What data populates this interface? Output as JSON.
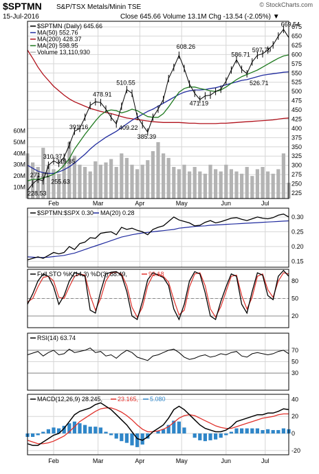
{
  "header": {
    "symbol": "$SPTMN",
    "name": "S&P/TSX Metals/Minin TSE",
    "date": "15-Jul-2016",
    "quote": "Close 645.66  Volume 13.1M  Chg -13.54 (-2.05%) ▼",
    "watermark": "© StockCharts.com"
  },
  "colors": {
    "price": "#000000",
    "ma50": "#1f2a9e",
    "ma200": "#b0101a",
    "ma20": "#1f7a1f",
    "volume": "#b3b3b3",
    "macd": "#000000",
    "signal": "#e0302a",
    "histogram": "#2f86c8",
    "grid": "#d6d6d6",
    "frame": "#000000",
    "hline": "#888888"
  },
  "x_axis": {
    "months": [
      "Feb",
      "Mar",
      "Apr",
      "May",
      "Jun",
      "Jul"
    ],
    "month_positions": [
      0.1,
      0.27,
      0.43,
      0.59,
      0.76,
      0.91
    ]
  },
  "chart_data": [
    {
      "type": "line",
      "name": "price",
      "legend": [
        {
          "key": "price",
          "text": "$SPTMN (Daily) 645.66"
        },
        {
          "key": "ma50",
          "text": "MA(50) 552.76"
        },
        {
          "key": "ma200",
          "text": "MA(200) 428.37"
        },
        {
          "key": "ma20",
          "text": "MA(20) 598.95"
        },
        {
          "key": "volume",
          "text": "Volume 13,110,930"
        }
      ],
      "ylim": [
        210,
        690
      ],
      "y_ticks": [
        675,
        650,
        625,
        600,
        575,
        550,
        525,
        500,
        475,
        450,
        425,
        400,
        375,
        350,
        325,
        300,
        275,
        250,
        225
      ],
      "volume_ticks": [
        "60M",
        "50M",
        "40M",
        "30M",
        "20M",
        "10M"
      ],
      "volume_tick_values": [
        60,
        50,
        40,
        30,
        20,
        10
      ],
      "volume_max": 66,
      "price_x": [
        0,
        0.02,
        0.04,
        0.06,
        0.08,
        0.1,
        0.12,
        0.14,
        0.16,
        0.18,
        0.2,
        0.22,
        0.24,
        0.26,
        0.28,
        0.3,
        0.32,
        0.34,
        0.36,
        0.38,
        0.4,
        0.42,
        0.44,
        0.46,
        0.48,
        0.5,
        0.52,
        0.54,
        0.56,
        0.58,
        0.6,
        0.62,
        0.64,
        0.66,
        0.68,
        0.7,
        0.72,
        0.74,
        0.76,
        0.78,
        0.8,
        0.82,
        0.84,
        0.86,
        0.88,
        0.9,
        0.92,
        0.94,
        0.96,
        0.98,
        1.0
      ],
      "price": [
        232,
        250,
        262,
        258,
        300,
        312,
        305,
        322,
        355,
        392,
        400,
        430,
        462,
        472,
        470,
        452,
        430,
        412,
        460,
        505,
        495,
        432,
        410,
        390,
        430,
        452,
        478,
        535,
        565,
        598,
        562,
        520,
        495,
        478,
        488,
        490,
        500,
        506,
        528,
        558,
        586,
        560,
        548,
        580,
        598,
        602,
        612,
        626,
        650,
        668,
        646
      ],
      "ma50": [
        300,
        292,
        284,
        280,
        278,
        278,
        282,
        288,
        296,
        306,
        318,
        330,
        344,
        356,
        366,
        376,
        384,
        392,
        402,
        412,
        422,
        430,
        438,
        446,
        452,
        460,
        468,
        476,
        484,
        492,
        498,
        502,
        504,
        504,
        505,
        508,
        510,
        514,
        518,
        522,
        526,
        530,
        532,
        536,
        540,
        544,
        546,
        548,
        550,
        552,
        553
      ],
      "ma200": [
        612,
        590,
        566,
        546,
        530,
        514,
        502,
        490,
        480,
        472,
        466,
        460,
        454,
        450,
        446,
        443,
        440,
        436,
        432,
        428,
        426,
        424,
        422,
        420,
        418,
        417,
        416,
        416,
        416,
        416,
        415,
        414,
        414,
        413,
        413,
        413,
        413,
        414,
        414,
        415,
        416,
        417,
        418,
        419,
        420,
        421,
        422,
        423,
        425,
        427,
        428
      ],
      "ma20": [
        258,
        262,
        262,
        266,
        270,
        276,
        286,
        300,
        318,
        344,
        364,
        384,
        402,
        420,
        436,
        446,
        450,
        448,
        442,
        446,
        452,
        448,
        440,
        432,
        430,
        430,
        440,
        458,
        478,
        498,
        508,
        512,
        512,
        508,
        505,
        502,
        500,
        504,
        512,
        522,
        532,
        540,
        546,
        552,
        558,
        566,
        574,
        582,
        590,
        596,
        599
      ],
      "volume": [
        40,
        32,
        28,
        45,
        30,
        26,
        22,
        36,
        50,
        38,
        30,
        28,
        24,
        33,
        30,
        32,
        35,
        28,
        40,
        36,
        30,
        26,
        30,
        34,
        42,
        50,
        40,
        36,
        28,
        26,
        30,
        24,
        28,
        24,
        22,
        30,
        26,
        24,
        30,
        26,
        24,
        22,
        28,
        20,
        26,
        28,
        24,
        22,
        26,
        40,
        14
      ],
      "annotations": [
        {
          "label": "271.01",
          "x": 0.01,
          "y": 268
        },
        {
          "label": "228.53",
          "x": 0.0,
          "y": 218
        },
        {
          "label": "255.63",
          "x": 0.09,
          "y": 250
        },
        {
          "label": "310.37",
          "x": 0.06,
          "y": 318
        },
        {
          "label": "319.85",
          "x": 0.11,
          "y": 305
        },
        {
          "label": "391.16",
          "x": 0.16,
          "y": 398
        },
        {
          "label": "478.91",
          "x": 0.25,
          "y": 486
        },
        {
          "label": "510.55",
          "x": 0.34,
          "y": 518
        },
        {
          "label": "409.22",
          "x": 0.35,
          "y": 396
        },
        {
          "label": "385.39",
          "x": 0.42,
          "y": 372
        },
        {
          "label": "608.26",
          "x": 0.57,
          "y": 616
        },
        {
          "label": "471.19",
          "x": 0.62,
          "y": 462
        },
        {
          "label": "586.71",
          "x": 0.78,
          "y": 594
        },
        {
          "label": "597.79",
          "x": 0.86,
          "y": 606
        },
        {
          "label": "526.71",
          "x": 0.85,
          "y": 517
        },
        {
          "label": "669.54",
          "x": 0.97,
          "y": 676
        }
      ]
    },
    {
      "type": "line",
      "name": "ratio",
      "legend": [
        {
          "key": "price",
          "text": "$SPTMN:$SPX 0.30"
        },
        {
          "key": "ma50",
          "text": "MA(20) 0.28"
        }
      ],
      "ylim": [
        0.13,
        0.33
      ],
      "y_ticks": [
        0.3,
        0.25,
        0.2,
        0.15
      ],
      "y_tick_labels": [
        "0.30",
        "0.25",
        "0.20",
        "0.15"
      ],
      "values": [
        0.155,
        0.16,
        0.165,
        0.16,
        0.17,
        0.18,
        0.175,
        0.18,
        0.2,
        0.19,
        0.21,
        0.215,
        0.23,
        0.228,
        0.245,
        0.248,
        0.25,
        0.24,
        0.265,
        0.258,
        0.262,
        0.255,
        0.25,
        0.24,
        0.258,
        0.265,
        0.27,
        0.285,
        0.3,
        0.29,
        0.285,
        0.28,
        0.27,
        0.272,
        0.282,
        0.288,
        0.28,
        0.284,
        0.29,
        0.296,
        0.298,
        0.292,
        0.288,
        0.294,
        0.3,
        0.296,
        0.294,
        0.298,
        0.306,
        0.31,
        0.3
      ],
      "ma": [
        0.165,
        0.164,
        0.163,
        0.163,
        0.164,
        0.166,
        0.168,
        0.17,
        0.174,
        0.178,
        0.184,
        0.19,
        0.196,
        0.202,
        0.208,
        0.214,
        0.22,
        0.226,
        0.232,
        0.236,
        0.24,
        0.243,
        0.246,
        0.248,
        0.25,
        0.252,
        0.254,
        0.256,
        0.258,
        0.262,
        0.264,
        0.266,
        0.268,
        0.269,
        0.27,
        0.272,
        0.273,
        0.274,
        0.275,
        0.276,
        0.277,
        0.278,
        0.279,
        0.28,
        0.281,
        0.282,
        0.283,
        0.284,
        0.285,
        0.286,
        0.287
      ]
    },
    {
      "type": "line",
      "name": "full_sto",
      "legend": [
        {
          "key": "price",
          "text": "Full STO %K(14,3) %D(3) 88.49,"
        },
        {
          "key": "signal",
          "text": "92.18"
        }
      ],
      "ylim": [
        0,
        100
      ],
      "y_ticks": [
        80,
        50,
        20
      ],
      "reference_lines": [
        80,
        50,
        20
      ],
      "k": [
        40,
        58,
        80,
        92,
        88,
        70,
        40,
        55,
        80,
        94,
        92,
        88,
        30,
        25,
        62,
        92,
        95,
        96,
        90,
        62,
        20,
        14,
        45,
        82,
        94,
        90,
        86,
        72,
        32,
        14,
        40,
        80,
        96,
        92,
        60,
        20,
        14,
        45,
        70,
        92,
        88,
        40,
        25,
        62,
        94,
        90,
        55,
        48,
        88,
        98,
        88
      ],
      "d": [
        44,
        50,
        70,
        86,
        88,
        80,
        52,
        50,
        70,
        88,
        92,
        90,
        55,
        30,
        50,
        80,
        94,
        95,
        92,
        72,
        35,
        18,
        35,
        72,
        90,
        92,
        88,
        78,
        48,
        22,
        30,
        70,
        92,
        94,
        72,
        32,
        18,
        36,
        62,
        88,
        90,
        55,
        32,
        52,
        88,
        92,
        65,
        52,
        80,
        94,
        92
      ]
    },
    {
      "type": "line",
      "name": "rsi",
      "legend": [
        {
          "key": "price",
          "text": "RSI(14) 63.74"
        }
      ],
      "ylim": [
        0,
        100
      ],
      "y_ticks": [
        70,
        50,
        30
      ],
      "reference_lines": [
        70,
        30
      ],
      "values": [
        62,
        65,
        68,
        60,
        66,
        70,
        62,
        64,
        72,
        66,
        68,
        70,
        74,
        66,
        68,
        60,
        62,
        56,
        64,
        70,
        66,
        58,
        55,
        52,
        60,
        62,
        66,
        70,
        72,
        66,
        58,
        54,
        56,
        60,
        62,
        58,
        60,
        64,
        62,
        66,
        68,
        60,
        58,
        64,
        66,
        64,
        62,
        64,
        68,
        70,
        64
      ]
    },
    {
      "type": "line",
      "name": "macd",
      "legend": [
        {
          "key": "price",
          "text": "MACD(12,26,9) 28.245,"
        },
        {
          "key": "signal",
          "text": "23.165,"
        },
        {
          "key": "histogram",
          "text": "5.080"
        }
      ],
      "ylim": [
        -25,
        46
      ],
      "y_ticks": [
        40,
        20,
        0,
        -20
      ],
      "macd": [
        -12,
        -14,
        -14,
        -10,
        -6,
        -2,
        0,
        6,
        14,
        22,
        26,
        28,
        30,
        34,
        36,
        32,
        28,
        22,
        16,
        10,
        2,
        -6,
        -8,
        -4,
        2,
        6,
        10,
        18,
        28,
        32,
        28,
        22,
        16,
        10,
        6,
        4,
        2,
        2,
        4,
        8,
        14,
        16,
        18,
        20,
        22,
        22,
        24,
        24,
        26,
        29,
        28
      ],
      "signal": [
        -8,
        -10,
        -12,
        -12,
        -11,
        -9,
        -6,
        -3,
        2,
        8,
        14,
        18,
        22,
        26,
        29,
        30,
        30,
        28,
        25,
        21,
        16,
        10,
        5,
        2,
        2,
        3,
        5,
        8,
        13,
        18,
        21,
        22,
        21,
        18,
        15,
        12,
        9,
        7,
        6,
        6,
        8,
        10,
        12,
        14,
        16,
        18,
        19,
        20,
        22,
        23,
        23
      ],
      "histogram": [
        -4,
        -4,
        -2,
        2,
        5,
        7,
        6,
        9,
        12,
        14,
        12,
        10,
        8,
        8,
        7,
        2,
        -2,
        -6,
        -9,
        -11,
        -14,
        -16,
        -13,
        -6,
        0,
        3,
        5,
        10,
        15,
        14,
        7,
        0,
        -5,
        -8,
        -9,
        -8,
        -7,
        -5,
        -2,
        2,
        6,
        6,
        6,
        6,
        6,
        4,
        5,
        4,
        4,
        6,
        5
      ]
    }
  ]
}
